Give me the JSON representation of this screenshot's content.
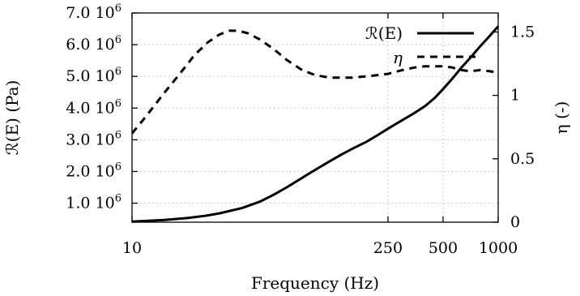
{
  "chart_data": {
    "type": "line",
    "title": "",
    "xlabel": "Frequency (Hz)",
    "ylabel_left": "ℛ(E) (Pa)",
    "ylabel_right": "η (-)",
    "x_scale": "log",
    "xlim": [
      10,
      1000
    ],
    "ylim_left": [
      400000,
      7000000
    ],
    "ylim_right": [
      0,
      1.65
    ],
    "x_ticks": [
      10,
      250,
      500,
      1000
    ],
    "x_tick_labels": [
      "10",
      "250",
      "500",
      "1000"
    ],
    "y_left_ticks": [
      1000000,
      2000000,
      3000000,
      4000000,
      5000000,
      6000000,
      7000000
    ],
    "y_left_tick_mantissas": [
      "1.0",
      "2.0",
      "3.0",
      "4.0",
      "5.0",
      "6.0",
      "7.0"
    ],
    "y_left_tick_exponent": "6",
    "y_right_ticks": [
      0,
      0.5,
      1,
      1.5
    ],
    "y_right_tick_labels": [
      "0",
      "0.5",
      "1",
      "1.5"
    ],
    "grid": true,
    "legend_position": "top-right",
    "series": [
      {
        "name": "ℛ(E)",
        "axis": "left",
        "style": "solid",
        "color": "#000000",
        "x": [
          10,
          15,
          20,
          25,
          30,
          40,
          50,
          60,
          70,
          85,
          100,
          120,
          140,
          160,
          190,
          220,
          250,
          300,
          350,
          400,
          450,
          500,
          560,
          630,
          700,
          800,
          900,
          1000
        ],
        "y": [
          420000,
          470000,
          530000,
          600000,
          680000,
          850000,
          1050000,
          1280000,
          1500000,
          1800000,
          2050000,
          2320000,
          2540000,
          2720000,
          2930000,
          3150000,
          3350000,
          3620000,
          3850000,
          4070000,
          4320000,
          4600000,
          4920000,
          5280000,
          5570000,
          5960000,
          6280000,
          6580000
        ]
      },
      {
        "name": "η",
        "axis": "right",
        "style": "dashed",
        "color": "#000000",
        "x": [
          10,
          12,
          15,
          18,
          22,
          26,
          30,
          34,
          38,
          43,
          50,
          60,
          70,
          85,
          100,
          120,
          140,
          160,
          190,
          220,
          250,
          300,
          350,
          400,
          450,
          500,
          560,
          630,
          700,
          800,
          900,
          1000
        ],
        "y": [
          0.7,
          0.84,
          1.02,
          1.16,
          1.32,
          1.42,
          1.48,
          1.51,
          1.51,
          1.49,
          1.44,
          1.36,
          1.28,
          1.2,
          1.16,
          1.14,
          1.14,
          1.14,
          1.15,
          1.16,
          1.17,
          1.2,
          1.22,
          1.23,
          1.23,
          1.23,
          1.22,
          1.2,
          1.19,
          1.2,
          1.19,
          1.18
        ]
      }
    ]
  }
}
